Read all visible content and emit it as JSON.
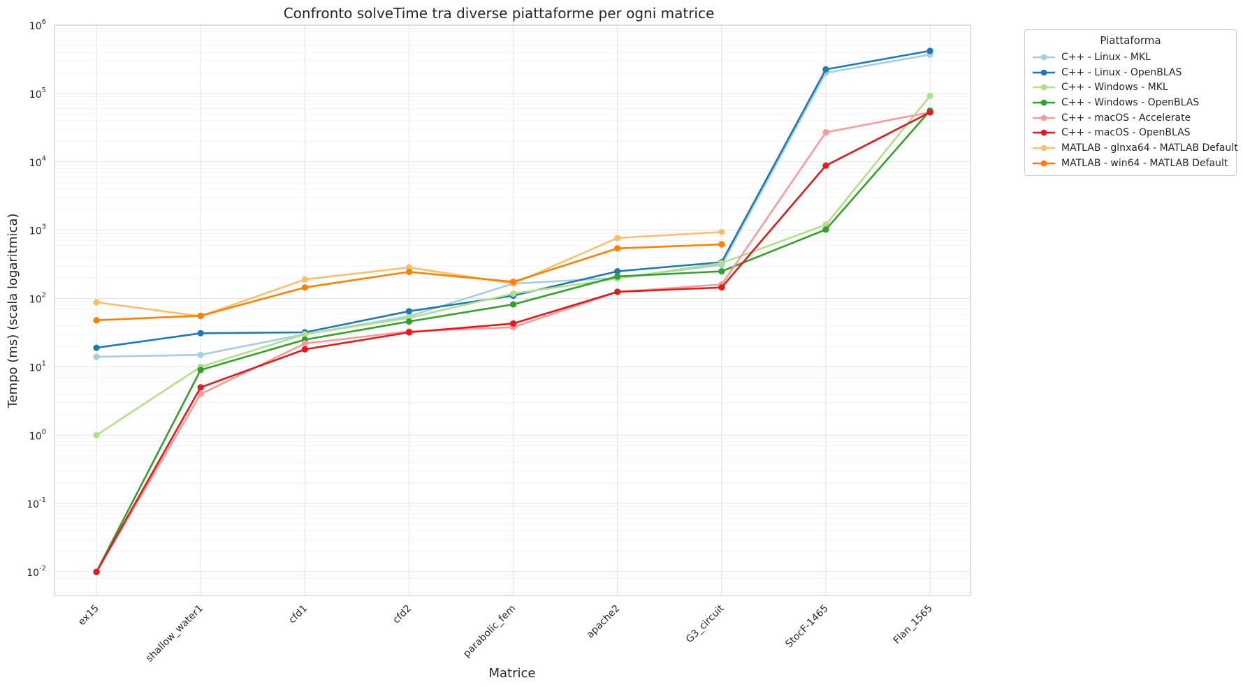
{
  "chart_data": {
    "type": "line",
    "title": "Confronto solveTime tra diverse piattaforme per ogni matrice",
    "xlabel": "Matrice",
    "ylabel": "Tempo (ms) (scala logaritmica)",
    "yscale": "log",
    "ylim": [
      0.0045,
      1000000
    ],
    "yticks": [
      {
        "base": "10",
        "exp": "-2",
        "value": 0.01
      },
      {
        "base": "10",
        "exp": "-1",
        "value": 0.1
      },
      {
        "base": "10",
        "exp": "0",
        "value": 1
      },
      {
        "base": "10",
        "exp": "1",
        "value": 10
      },
      {
        "base": "10",
        "exp": "2",
        "value": 100
      },
      {
        "base": "10",
        "exp": "3",
        "value": 1000
      },
      {
        "base": "10",
        "exp": "4",
        "value": 10000
      },
      {
        "base": "10",
        "exp": "5",
        "value": 100000
      },
      {
        "base": "10",
        "exp": "6",
        "value": 1000000
      }
    ],
    "grid": true,
    "legend_title": "Piattaforma",
    "legend_position": "outside-top-right",
    "categories": [
      "ex15",
      "shallow_water1",
      "cfd1",
      "cfd2",
      "parabolic_fem",
      "apache2",
      "G3_circuit",
      "StocF-1465",
      "Flan_1565"
    ],
    "series": [
      {
        "name": "C++ - Linux - MKL",
        "color": "#a6cee3",
        "values": [
          14,
          15,
          30,
          55,
          165,
          200,
          310,
          200000,
          370000
        ]
      },
      {
        "name": "C++ - Linux - OpenBLAS",
        "color": "#1f78b4",
        "values": [
          19,
          31,
          32,
          65,
          110,
          250,
          340,
          225000,
          420000
        ]
      },
      {
        "name": "C++ - Windows - MKL",
        "color": "#b2df8a",
        "values": [
          1,
          10,
          30,
          52,
          118,
          195,
          330,
          1200,
          92000
        ]
      },
      {
        "name": "C++ - Windows - OpenBLAS",
        "color": "#33a02c",
        "values": [
          0.01,
          9,
          25,
          46,
          82,
          210,
          250,
          1020,
          56000
        ]
      },
      {
        "name": "C++ - macOS - Accelerate",
        "color": "#fb9a99",
        "values": [
          0.01,
          4,
          22,
          33,
          38,
          125,
          160,
          27000,
          53000
        ]
      },
      {
        "name": "C++ - macOS - OpenBLAS",
        "color": "#e31a1c",
        "values": [
          0.01,
          5,
          18,
          32,
          43,
          125,
          145,
          8800,
          53000
        ]
      },
      {
        "name": "MATLAB - glnxa64 - MATLAB Default",
        "color": "#fdbf6f",
        "values": [
          88,
          55,
          190,
          285,
          165,
          770,
          940,
          null,
          null
        ]
      },
      {
        "name": "MATLAB - win64 - MATLAB Default",
        "color": "#ff7f00",
        "values": [
          48,
          56,
          145,
          245,
          175,
          540,
          620,
          null,
          null
        ]
      }
    ]
  }
}
